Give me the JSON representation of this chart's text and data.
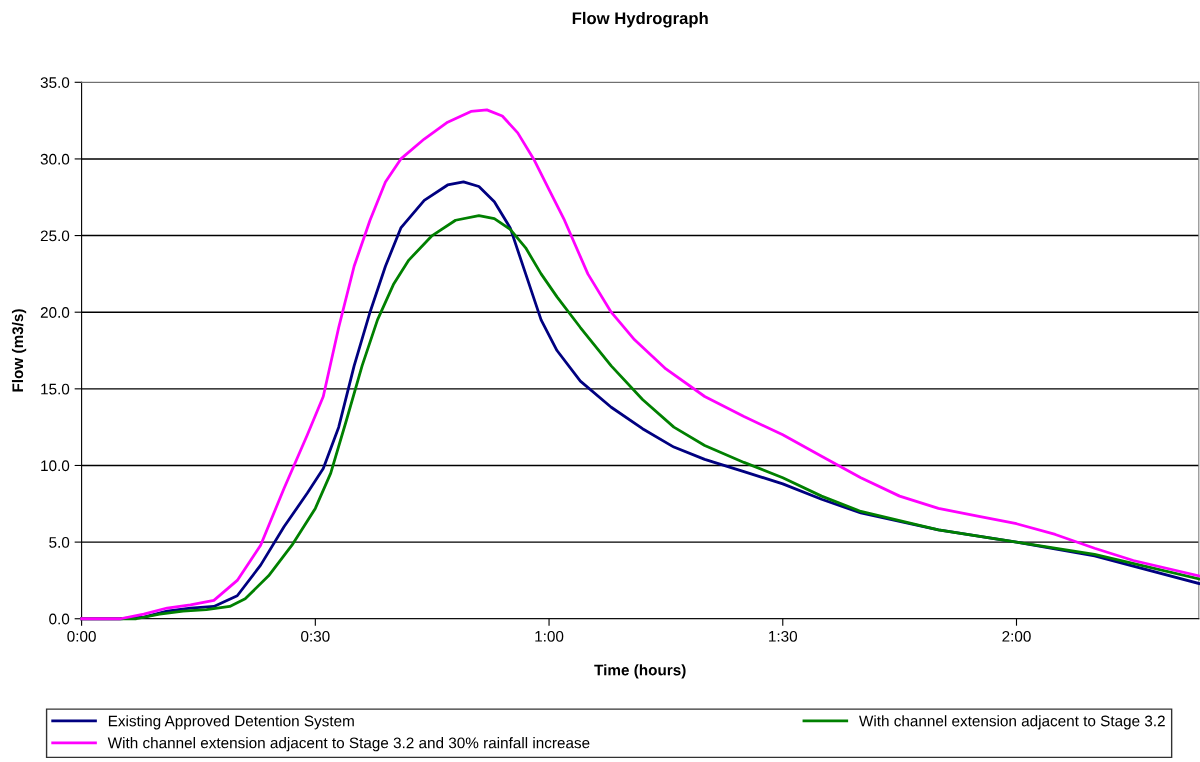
{
  "chart_data": {
    "type": "line",
    "title": "Flow Hydrograph",
    "xlabel": "Time (hours)",
    "ylabel": "Flow (m3/s)",
    "xlim": [
      0,
      2.39
    ],
    "xticks": [
      {
        "value": 0,
        "label": "0:00"
      },
      {
        "value": 0.5,
        "label": "0:30"
      },
      {
        "value": 1,
        "label": "1:00"
      },
      {
        "value": 1.5,
        "label": "1:30"
      },
      {
        "value": 2,
        "label": "2:00"
      }
    ],
    "ylim": [
      0,
      35
    ],
    "yticks": [
      {
        "value": 0,
        "label": "0.0"
      },
      {
        "value": 5,
        "label": "5.0"
      },
      {
        "value": 10,
        "label": "10.0"
      },
      {
        "value": 15,
        "label": "15.0"
      },
      {
        "value": 20,
        "label": "20.0"
      },
      {
        "value": 25,
        "label": "25.0"
      },
      {
        "value": 30,
        "label": "30.0"
      },
      {
        "value": 35,
        "label": "35.0"
      }
    ],
    "grid": "y",
    "legend": "bottom",
    "marker": "none",
    "line_style": "solid",
    "series": [
      {
        "name": "Existing Approved Detention System",
        "color": "#000080",
        "x": [
          0,
          0.083,
          0.133,
          0.183,
          0.233,
          0.283,
          0.333,
          0.383,
          0.433,
          0.483,
          0.517,
          0.55,
          0.583,
          0.617,
          0.65,
          0.683,
          0.733,
          0.783,
          0.817,
          0.85,
          0.883,
          0.917,
          0.95,
          0.983,
          1.017,
          1.067,
          1.133,
          1.2,
          1.267,
          1.333,
          1.417,
          1.5,
          1.583,
          1.667,
          1.833,
          2,
          2.167,
          2.39
        ],
        "values": [
          0,
          0,
          0.1,
          0.5,
          0.7,
          0.8,
          1.5,
          3.5,
          6,
          8.2,
          9.8,
          12.5,
          16.5,
          20,
          23,
          25.5,
          27.3,
          28.3,
          28.5,
          28.2,
          27.2,
          25.5,
          22.5,
          19.5,
          17.5,
          15.5,
          13.8,
          12.4,
          11.2,
          10.4,
          9.6,
          8.8,
          7.8,
          6.9,
          5.8,
          5.0,
          4.1,
          2.3
        ]
      },
      {
        "name": "With channel extension adjacent to Stage 3.2",
        "color": "#008000",
        "x": [
          0,
          0.117,
          0.167,
          0.217,
          0.267,
          0.317,
          0.35,
          0.4,
          0.45,
          0.5,
          0.533,
          0.567,
          0.6,
          0.633,
          0.667,
          0.7,
          0.75,
          0.8,
          0.85,
          0.883,
          0.917,
          0.95,
          0.983,
          1.017,
          1.067,
          1.133,
          1.2,
          1.267,
          1.333,
          1.417,
          1.5,
          1.583,
          1.667,
          1.833,
          2,
          2.167,
          2.39
        ],
        "values": [
          0,
          0,
          0.3,
          0.5,
          0.6,
          0.8,
          1.3,
          2.8,
          4.8,
          7.2,
          9.5,
          13,
          16.5,
          19.5,
          21.8,
          23.4,
          25,
          26,
          26.3,
          26.1,
          25.4,
          24.2,
          22.5,
          21,
          19,
          16.5,
          14.3,
          12.5,
          11.3,
          10.2,
          9.2,
          8,
          7,
          5.8,
          5.0,
          4.2,
          2.6
        ]
      },
      {
        "name": "With channel extension adjacent to Stage 3.2 and 30% rainfall increase",
        "color": "#ff00ff",
        "x": [
          0,
          0.083,
          0.133,
          0.183,
          0.233,
          0.283,
          0.333,
          0.383,
          0.433,
          0.483,
          0.517,
          0.55,
          0.583,
          0.617,
          0.65,
          0.683,
          0.733,
          0.783,
          0.833,
          0.867,
          0.9,
          0.933,
          0.967,
          1,
          1.033,
          1.083,
          1.133,
          1.183,
          1.25,
          1.333,
          1.417,
          1.5,
          1.583,
          1.667,
          1.75,
          1.833,
          1.917,
          2,
          2.083,
          2.167,
          2.25,
          2.39
        ],
        "values": [
          0,
          0,
          0.3,
          0.7,
          0.9,
          1.2,
          2.5,
          4.8,
          8.5,
          12,
          14.5,
          19,
          23,
          26,
          28.5,
          30,
          31.3,
          32.4,
          33.1,
          33.2,
          32.8,
          31.7,
          30,
          28,
          26,
          22.5,
          20,
          18.2,
          16.3,
          14.5,
          13.2,
          12,
          10.6,
          9.2,
          8,
          7.2,
          6.7,
          6.2,
          5.5,
          4.6,
          3.8,
          2.8
        ]
      }
    ]
  }
}
